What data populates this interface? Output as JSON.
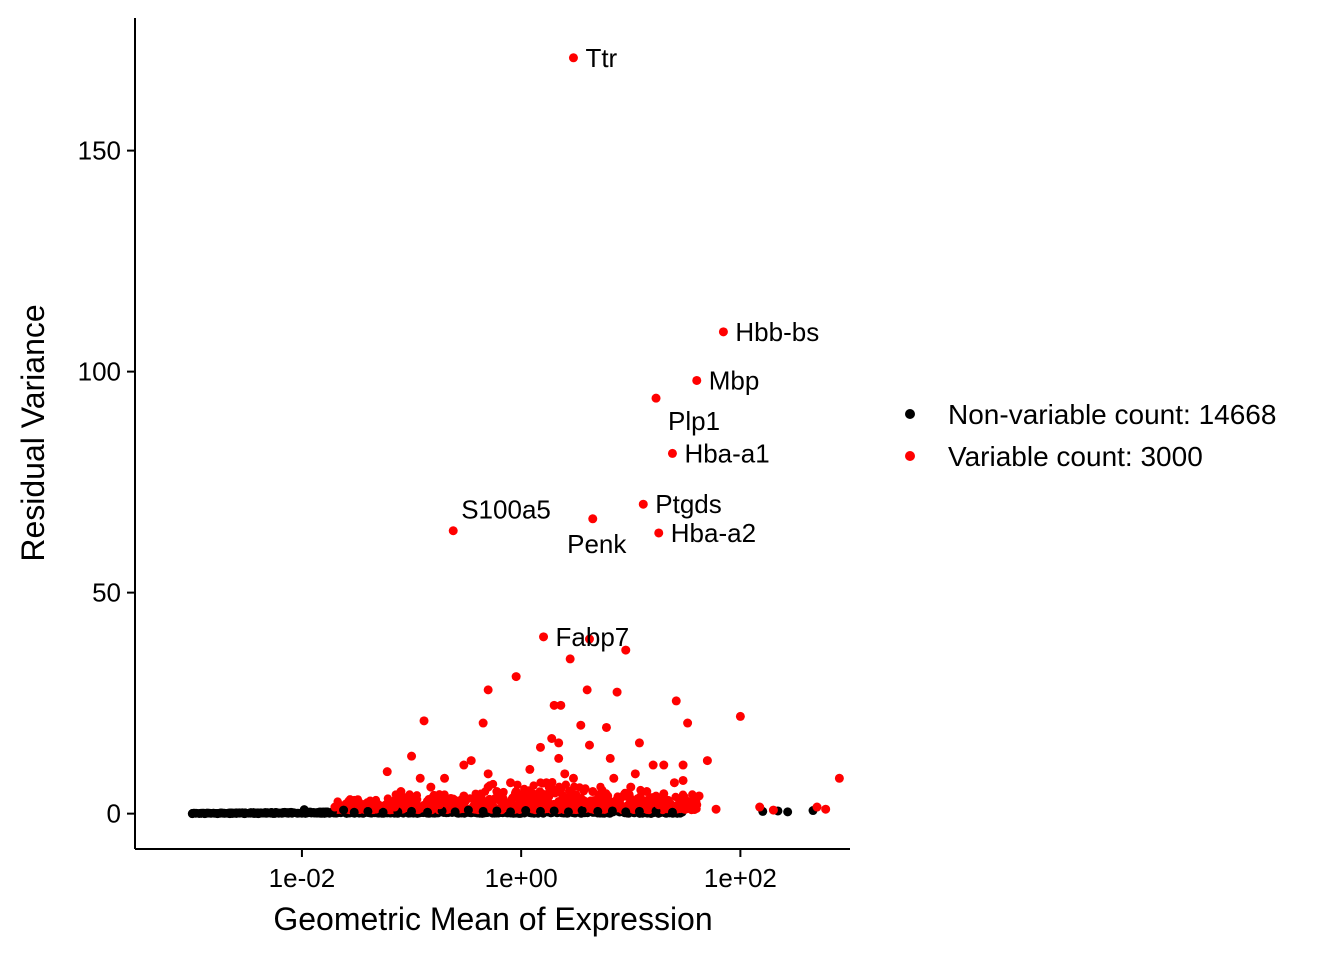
{
  "chart_data": {
    "type": "scatter",
    "title": "",
    "xlabel": "Geometric Mean of Expression",
    "ylabel": "Residual Variance",
    "x_scale": "log10",
    "xlim": [
      0.0003,
      1000
    ],
    "ylim": [
      -8,
      180
    ],
    "x_ticks": [
      0.01,
      1,
      100
    ],
    "x_tick_labels": [
      "1e-02",
      "1e+00",
      "1e+02"
    ],
    "y_ticks": [
      0,
      50,
      100,
      150
    ],
    "y_tick_labels": [
      "0",
      "50",
      "100",
      "150"
    ],
    "grid": false,
    "legend_position": "right",
    "colors": {
      "non_variable": "#000000",
      "variable": "#ff0000"
    },
    "series": [
      {
        "name": "Non-variable count: 14668",
        "color": "#000000",
        "note_density": "dense band of points near y = 0 from x = 0.001 to x = 30",
        "points": [
          [
            0.001,
            0.0
          ],
          [
            0.0013,
            0.0
          ],
          [
            0.0017,
            0.0
          ],
          [
            0.0022,
            0.0
          ],
          [
            0.003,
            0.0
          ],
          [
            0.004,
            0.0
          ],
          [
            0.0055,
            0.1
          ],
          [
            0.0075,
            0.1
          ],
          [
            0.01,
            0.2
          ],
          [
            0.0105,
            0.9
          ],
          [
            0.014,
            0.2
          ],
          [
            0.019,
            0.4
          ],
          [
            0.024,
            0.8
          ],
          [
            0.03,
            0.3
          ],
          [
            0.04,
            0.5
          ],
          [
            0.055,
            0.3
          ],
          [
            0.075,
            0.4
          ],
          [
            0.1,
            0.5
          ],
          [
            0.14,
            0.3
          ],
          [
            0.19,
            0.6
          ],
          [
            0.25,
            0.4
          ],
          [
            0.33,
            0.8
          ],
          [
            0.45,
            0.5
          ],
          [
            0.6,
            0.6
          ],
          [
            0.8,
            0.4
          ],
          [
            1.1,
            0.7
          ],
          [
            1.5,
            0.5
          ],
          [
            2.0,
            0.6
          ],
          [
            2.7,
            0.4
          ],
          [
            3.6,
            0.7
          ],
          [
            5.0,
            0.5
          ],
          [
            6.8,
            0.6
          ],
          [
            9.0,
            0.4
          ],
          [
            12,
            0.5
          ],
          [
            17,
            0.6
          ],
          [
            24,
            0.3
          ],
          [
            160,
            0.5
          ],
          [
            220,
            0.6
          ],
          [
            270,
            0.4
          ],
          [
            460,
            0.7
          ]
        ]
      },
      {
        "name": "Variable count: 3000",
        "color": "#ff0000",
        "points": [
          [
            3.0,
            171
          ],
          [
            70,
            109
          ],
          [
            40,
            98
          ],
          [
            17,
            94
          ],
          [
            24,
            81.5
          ],
          [
            13,
            70
          ],
          [
            4.5,
            66.7
          ],
          [
            0.24,
            64
          ],
          [
            18,
            63.5
          ],
          [
            1.6,
            40
          ],
          [
            4.2,
            39.5
          ],
          [
            9.0,
            37
          ],
          [
            2.8,
            35
          ],
          [
            0.9,
            31
          ],
          [
            0.5,
            28
          ],
          [
            4.0,
            28
          ],
          [
            7.5,
            27.5
          ],
          [
            26,
            25.5
          ],
          [
            2.3,
            24.5
          ],
          [
            2.0,
            24.5
          ],
          [
            100,
            22
          ],
          [
            0.13,
            21
          ],
          [
            0.45,
            20.5
          ],
          [
            33,
            20.5
          ],
          [
            3.5,
            20
          ],
          [
            6.0,
            19.5
          ],
          [
            1.9,
            17
          ],
          [
            2.2,
            16
          ],
          [
            12,
            16
          ],
          [
            4.2,
            15.5
          ],
          [
            1.5,
            15
          ],
          [
            2.2,
            12.5
          ],
          [
            6.5,
            12.5
          ],
          [
            0.1,
            13
          ],
          [
            0.35,
            12
          ],
          [
            0.3,
            11
          ],
          [
            16,
            11
          ],
          [
            20,
            11
          ],
          [
            30,
            11
          ],
          [
            50,
            12
          ],
          [
            0.06,
            9.5
          ],
          [
            0.12,
            8
          ],
          [
            0.2,
            8
          ],
          [
            0.5,
            9
          ],
          [
            1.2,
            10
          ],
          [
            0.8,
            7
          ],
          [
            2.5,
            9
          ],
          [
            7,
            8
          ],
          [
            11,
            9
          ],
          [
            25,
            7
          ],
          [
            42,
            4
          ],
          [
            30,
            7.5
          ],
          [
            800,
            8
          ],
          [
            0.03,
            3
          ],
          [
            0.05,
            2
          ],
          [
            0.08,
            5
          ],
          [
            0.15,
            6
          ],
          [
            0.25,
            3
          ],
          [
            0.4,
            4
          ],
          [
            0.6,
            5
          ],
          [
            1.0,
            3
          ],
          [
            1.4,
            4
          ],
          [
            1.8,
            6
          ],
          [
            3.2,
            3
          ],
          [
            4.5,
            5
          ],
          [
            6,
            3
          ],
          [
            9,
            4
          ],
          [
            14,
            5
          ],
          [
            18,
            2
          ],
          [
            22,
            3
          ],
          [
            40,
            2
          ],
          [
            60,
            1
          ],
          [
            150,
            1.5
          ],
          [
            200,
            0.8
          ],
          [
            500,
            1.5
          ],
          [
            600,
            1
          ],
          [
            0.02,
            1.5
          ],
          [
            0.04,
            2.5
          ],
          [
            0.07,
            1.5
          ],
          [
            0.09,
            3.5
          ],
          [
            0.18,
            2
          ],
          [
            0.3,
            4
          ],
          [
            0.5,
            6
          ],
          [
            0.7,
            2
          ],
          [
            0.9,
            5
          ],
          [
            1.3,
            2.5
          ],
          [
            1.7,
            7
          ],
          [
            2.4,
            2
          ],
          [
            3.0,
            8
          ],
          [
            3.8,
            2.5
          ],
          [
            5.5,
            4
          ],
          [
            8,
            2
          ],
          [
            10,
            6
          ],
          [
            15,
            3.5
          ],
          [
            20,
            4.5
          ]
        ]
      }
    ],
    "annotations": [
      {
        "text": "Ttr",
        "x": 3.0,
        "y": 171,
        "anchor": "right"
      },
      {
        "text": "Hbb-bs",
        "x": 70,
        "y": 109,
        "anchor": "right"
      },
      {
        "text": "Mbp",
        "x": 40,
        "y": 98,
        "anchor": "right"
      },
      {
        "text": "Plp1",
        "x": 17,
        "y": 94,
        "anchor": "below-right"
      },
      {
        "text": "Hba-a1",
        "x": 24,
        "y": 81.5,
        "anchor": "right"
      },
      {
        "text": "Ptgds",
        "x": 13,
        "y": 70,
        "anchor": "right"
      },
      {
        "text": "S100a5",
        "x": 0.24,
        "y": 64,
        "anchor": "above-right"
      },
      {
        "text": "Penk",
        "x": 4.5,
        "y": 66.7,
        "anchor": "below"
      },
      {
        "text": "Hba-a2",
        "x": 18,
        "y": 63.5,
        "anchor": "right"
      },
      {
        "text": "Fabp7",
        "x": 1.6,
        "y": 40,
        "anchor": "right"
      }
    ]
  }
}
